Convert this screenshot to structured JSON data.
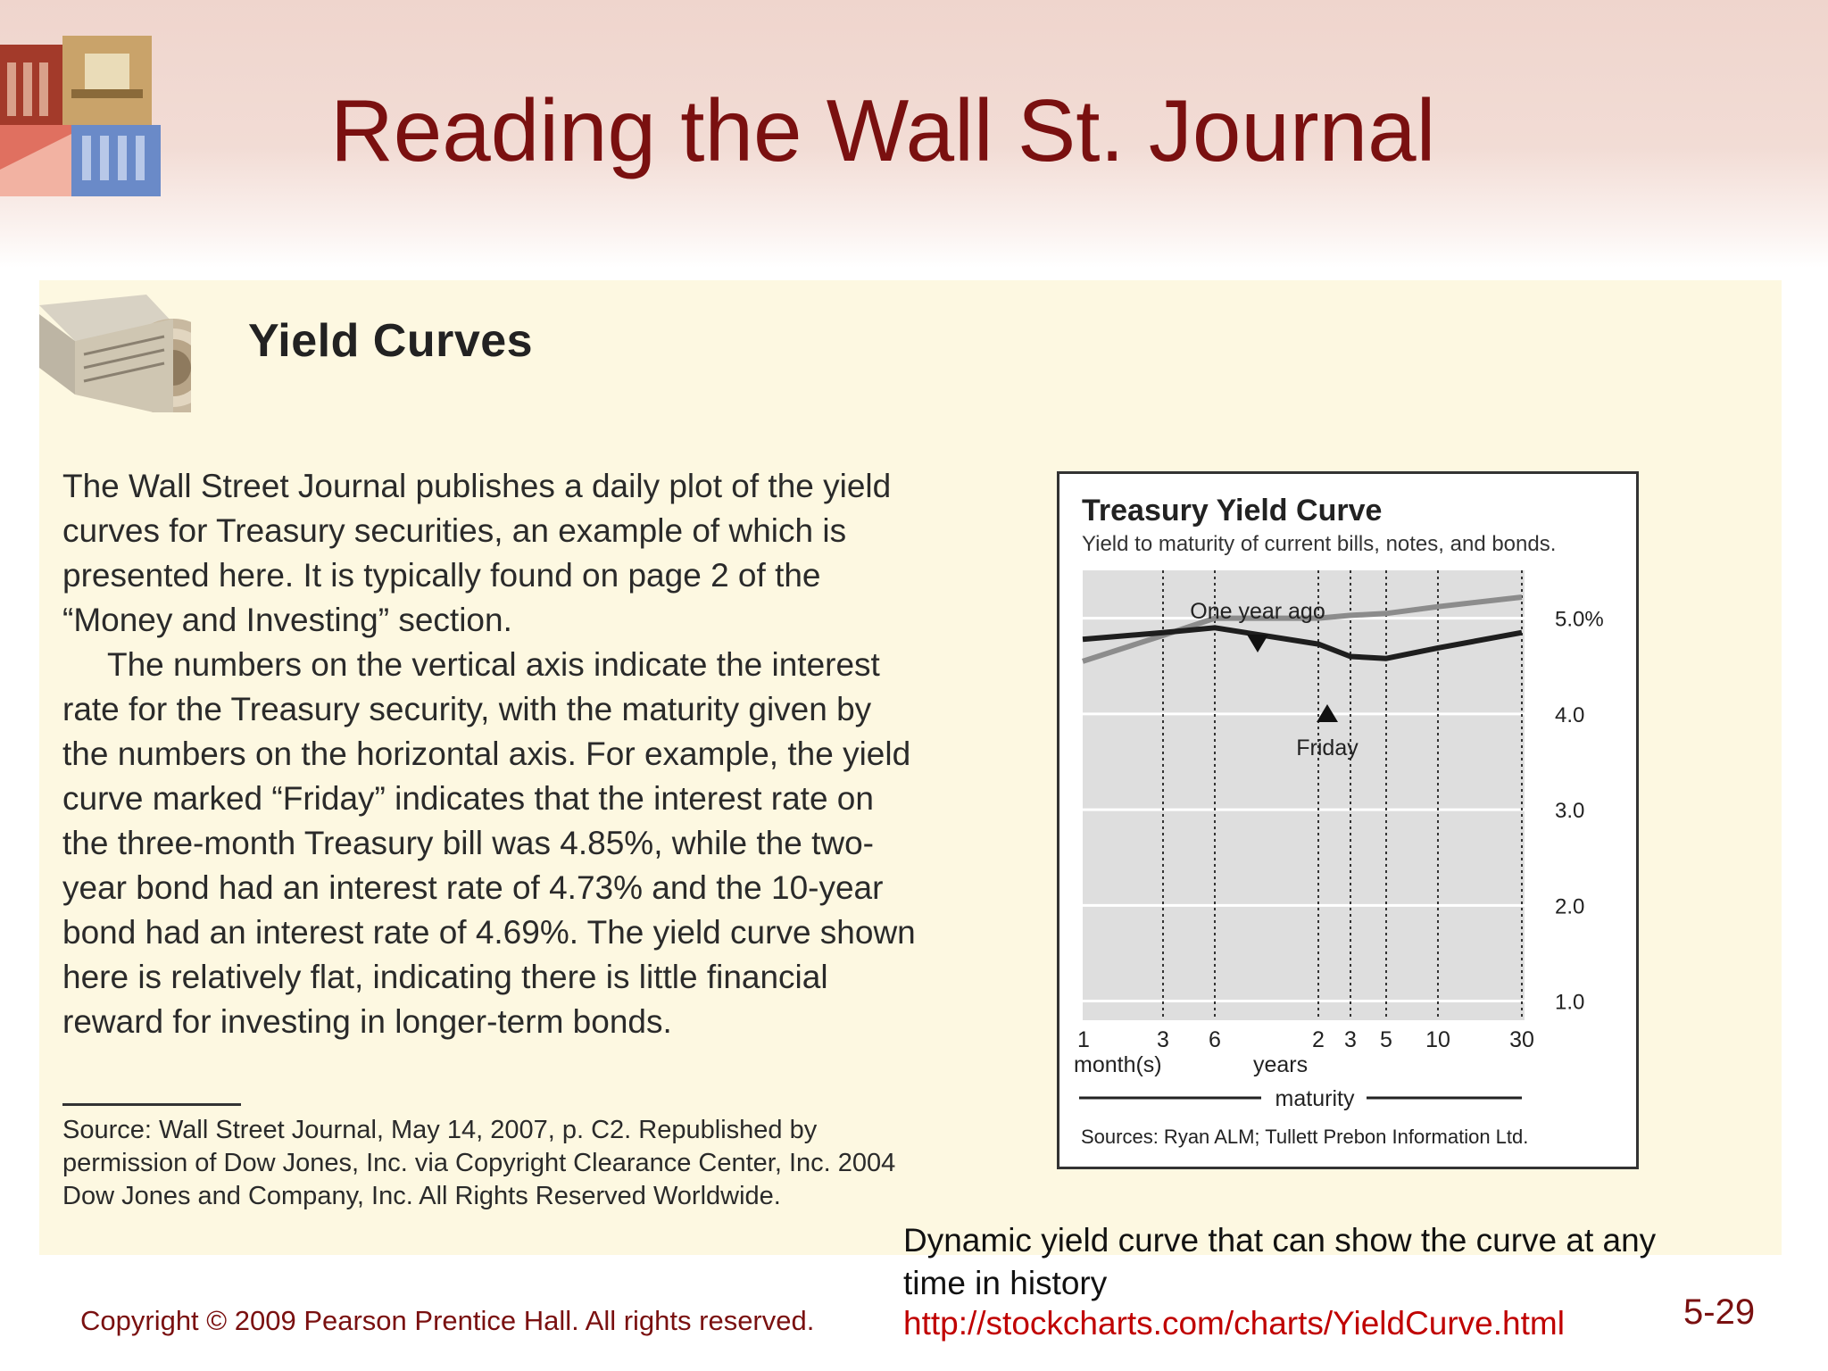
{
  "slide": {
    "title": "Reading the Wall St. Journal",
    "number": "5-29",
    "copyright": "Copyright © 2009 Pearson Prentice Hall. All rights reserved."
  },
  "box": {
    "heading": "Yield Curves",
    "paragraphs": [
      "The Wall Street Journal publishes a daily plot of the yield curves for Treasury securities, an example of which is presented here. It is typically found on page 2 of the “Money and Investing” section.",
      "The numbers on the vertical axis indicate the interest rate for the Treasury security, with the maturity given by the numbers on the horizontal axis. For example, the yield curve marked “Friday” indicates that the interest rate on the three-month Treasury bill was 4.85%, while the two-year bond had an interest rate of 4.73% and the 10-year bond had an interest rate of 4.69%. The yield curve shown here is relatively flat, indicating there is little financial reward for investing in longer-term bonds."
    ],
    "source": "Source: Wall Street Journal, May 14, 2007, p. C2. Republished by permission of Dow Jones, Inc. via Copyright Clearance Center, Inc. 2004 Dow Jones and Company, Inc. All Rights Reserved Worldwide."
  },
  "note": {
    "text": "Dynamic yield curve that can show the curve at any time in history",
    "link": "http://stockcharts.com/charts/YieldCurve.html"
  },
  "chart_data": {
    "type": "line",
    "title": "Treasury Yield Curve",
    "subtitle": "Yield to maturity of current bills, notes, and bonds.",
    "x": [
      "1",
      "3",
      "6",
      "2",
      "3",
      "5",
      "10",
      "30"
    ],
    "x_unit_labels": {
      "months": "month(s)",
      "years": "years"
    },
    "xlabel": "maturity",
    "y_ticks": [
      "5.0%",
      "4.0",
      "3.0",
      "2.0",
      "1.0"
    ],
    "ylim": [
      0.8,
      5.5
    ],
    "series": [
      {
        "name": "One year ago",
        "color": "#8c8c8c",
        "values": [
          4.55,
          4.82,
          5.0,
          5.0,
          5.03,
          5.05,
          5.12,
          5.22
        ]
      },
      {
        "name": "Friday",
        "color": "#1e1e1e",
        "values": [
          4.78,
          4.85,
          4.9,
          4.73,
          4.6,
          4.58,
          4.69,
          4.85
        ]
      }
    ],
    "sources": "Sources: Ryan ALM; Tullett Prebon Information Ltd.",
    "grid": true
  }
}
